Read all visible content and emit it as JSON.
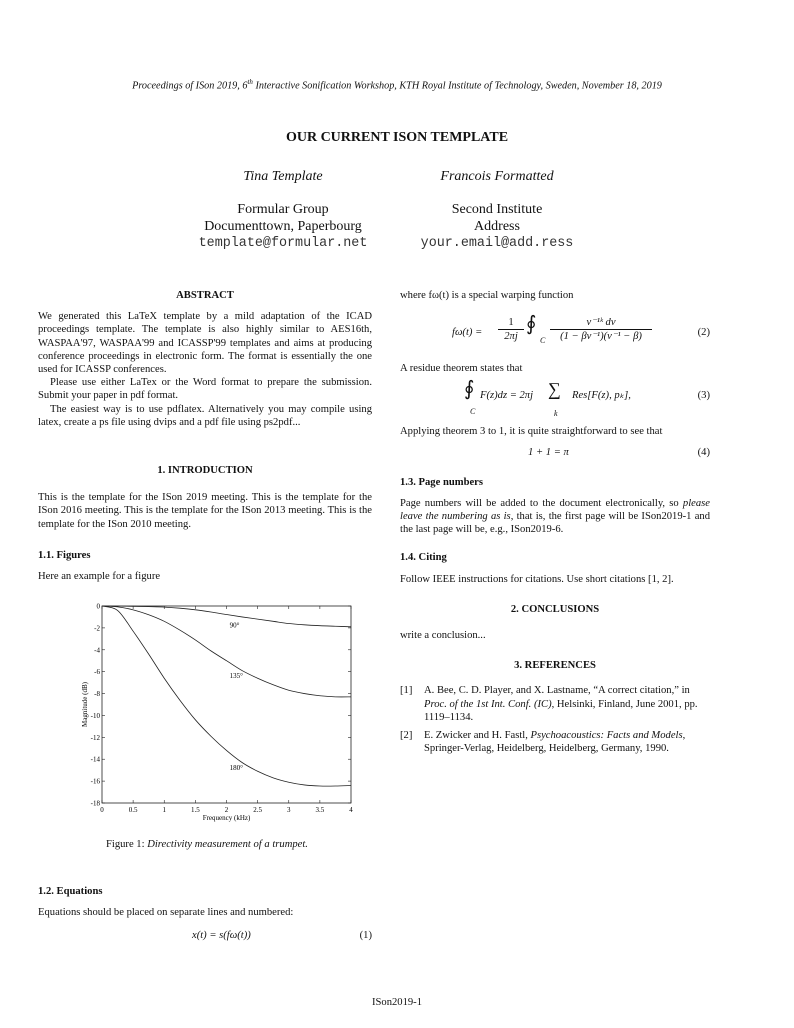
{
  "header": "Proceedings of ISon 2019, 6th Interactive Sonification Workshop, KTH Royal Institute of Technology, Sweden, November 18, 2019",
  "header_pre": "Proceedings of ISon 2019, 6",
  "header_sup": "th",
  "header_post": " Interactive Sonification Workshop, KTH Royal Institute of Technology, Sweden, November 18, 2019",
  "title": "OUR CURRENT ISON TEMPLATE",
  "authors": [
    {
      "name": "Tina Template",
      "affil1": "Formular Group",
      "affil2": "Documenttown, Paperbourg",
      "email": "template@formular.net"
    },
    {
      "name": "Francois Formatted",
      "affil1": "Second Institute",
      "affil2": "Address",
      "email": "your.email@add.ress"
    }
  ],
  "abstract": {
    "heading": "ABSTRACT",
    "p1": "We generated this LaTeX template by a mild adaptation of the ICAD proceedings template. The template is also highly similar to AES16th, WASPAA'97, WASPAA'99 and ICASSP'99 templates and aims at producing conference proceedings in electronic form. The format is essentially the one used for ICASSP conferences.",
    "p2": "Please use either LaTex or the Word format to prepare the submission. Submit your paper in pdf format.",
    "p3": "The easiest way is to use pdflatex. Alternatively you may compile using latex, create a ps file using dvips and a pdf file using ps2pdf..."
  },
  "intro": {
    "heading": "1. INTRODUCTION",
    "text": "This is the template for the ISon 2019 meeting. This is the template for the ISon 2016 meeting. This is the template for the ISon 2013 meeting. This is the template for the ISon 2010 meeting."
  },
  "figures": {
    "heading": "1.1.  Figures",
    "text": "Here an example for a figure",
    "caption_label": "Figure 1: ",
    "caption": "Directivity measurement of a trumpet."
  },
  "equations": {
    "heading": "1.2.  Equations",
    "text": "Equations should be placed on separate lines and numbered:",
    "eq1": "x(t) = s(fω(t))",
    "eq1_num": "(1)"
  },
  "right": {
    "where": "where fω(t) is a special warping function",
    "eq2_lhs": "fω(t) = ",
    "eq2_frac1_num": "1",
    "eq2_frac1_den": "2πj",
    "eq2_int": "∮",
    "eq2_sub": "C",
    "eq2_num": "ν⁻¹ᵏ dν",
    "eq2_den": "(1 − βν⁻¹)(ν⁻¹ − β)",
    "eq2_n": "(2)",
    "residue": "A residue theorem states that",
    "eq3_a": "F(z)dz = 2πj",
    "eq3_sum": "∑",
    "eq3_k": "k",
    "eq3_b": "Res[F(z), pₖ],",
    "eq3_n": "(3)",
    "applying": "Applying theorem 3 to 1, it is quite straightforward to see that",
    "eq4": "1 + 1 = π",
    "eq4_n": "(4)",
    "pages_heading": "1.3.  Page numbers",
    "pages_a": "Page numbers will be added to the document electronically, so ",
    "pages_em": "please leave the numbering as is",
    "pages_b": ", that is, the first page will be ISon2019-1 and the last page will be, e.g., ISon2019-6.",
    "citing_heading": "1.4.  Citing",
    "citing": "Follow IEEE instructions for citations. Use short citations [1, 2].",
    "concl_heading": "2. CONCLUSIONS",
    "concl": "write a conclusion...",
    "refs_heading": "3. REFERENCES",
    "refs": [
      {
        "n": "[1]",
        "a": "A. Bee, C. D. Player, and X. Lastname, “A correct citation,” in ",
        "em": "Proc. of the 1st Int. Conf. (IC)",
        "b": ", Helsinki, Finland, June 2001, pp. 1119–1134."
      },
      {
        "n": "[2]",
        "a": "E. Zwicker and H. Fastl, ",
        "em": "Psychoacoustics: Facts and Models",
        "b": ", Springer-Verlag, Heidelberg, Heidelberg, Germany, 1990."
      }
    ]
  },
  "footer": "ISon2019-1",
  "chart_data": {
    "type": "line",
    "xlabel": "Frequency (kHz)",
    "ylabel": "Magnitude (dB)",
    "xlim": [
      0,
      4
    ],
    "ylim": [
      -18,
      0
    ],
    "xticks": [
      "0",
      "0.5",
      "1",
      "1.5",
      "2",
      "2.5",
      "3",
      "3.5",
      "4"
    ],
    "yticks": [
      "0",
      "-2",
      "-4",
      "-6",
      "-8",
      "-10",
      "-12",
      "-14",
      "-16",
      "-18"
    ],
    "x": [
      0,
      0.25,
      0.5,
      0.75,
      1,
      1.25,
      1.5,
      1.75,
      2,
      2.25,
      2.5,
      2.75,
      3,
      3.25,
      3.5,
      3.75,
      4
    ],
    "series": [
      {
        "name": "90°",
        "label_at": [
          2.05,
          -1.8
        ],
        "values": [
          0,
          -0.01,
          -0.03,
          -0.06,
          -0.1,
          -0.2,
          -0.35,
          -0.55,
          -0.78,
          -1.0,
          -1.2,
          -1.4,
          -1.6,
          -1.72,
          -1.8,
          -1.85,
          -1.9
        ]
      },
      {
        "name": "135°",
        "label_at": [
          2.05,
          -6.4
        ],
        "values": [
          0,
          -0.08,
          -0.35,
          -0.8,
          -1.4,
          -2.2,
          -3.1,
          -4.1,
          -5.0,
          -5.9,
          -6.6,
          -7.2,
          -7.7,
          -8.0,
          -8.2,
          -8.3,
          -8.3
        ]
      },
      {
        "name": "180°",
        "label_at": [
          2.05,
          -14.8
        ],
        "values": [
          0,
          -0.4,
          -2.3,
          -4.4,
          -6.6,
          -8.6,
          -10.4,
          -11.9,
          -13.2,
          -14.3,
          -15.1,
          -15.7,
          -16.1,
          -16.35,
          -16.45,
          -16.45,
          -16.4
        ]
      }
    ]
  }
}
